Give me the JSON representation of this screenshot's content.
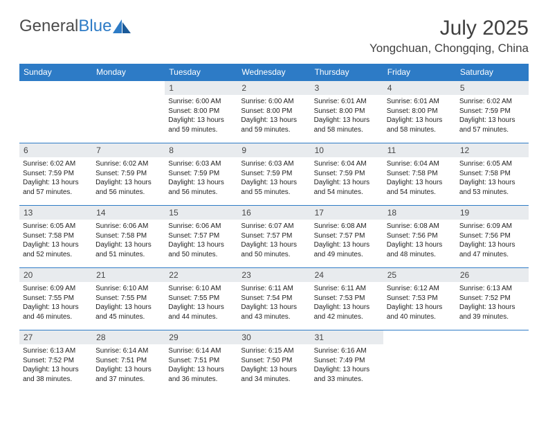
{
  "brand": {
    "word1": "General",
    "word2": "Blue"
  },
  "title": "July 2025",
  "location": "Yongchuan, Chongqing, China",
  "colors": {
    "headerBg": "#2d7bc6",
    "headerText": "#ffffff",
    "dayNumBg": "#e8ebee",
    "cellBorder": "#2d7bc6",
    "text": "#1e1e1e",
    "titleText": "#404040",
    "logoGray": "#4c4c4c"
  },
  "dayNames": [
    "Sunday",
    "Monday",
    "Tuesday",
    "Wednesday",
    "Thursday",
    "Friday",
    "Saturday"
  ],
  "style": {
    "titleFontSize": 30,
    "locationFontSize": 17,
    "dayNameFontSize": 12,
    "bodyFontSize": 10,
    "pageWidth": 792,
    "pageHeight": 612
  },
  "weeks": [
    [
      null,
      null,
      {
        "n": "1",
        "sunrise": "6:00 AM",
        "sunset": "8:00 PM",
        "daylight": "13 hours and 59 minutes."
      },
      {
        "n": "2",
        "sunrise": "6:00 AM",
        "sunset": "8:00 PM",
        "daylight": "13 hours and 59 minutes."
      },
      {
        "n": "3",
        "sunrise": "6:01 AM",
        "sunset": "8:00 PM",
        "daylight": "13 hours and 58 minutes."
      },
      {
        "n": "4",
        "sunrise": "6:01 AM",
        "sunset": "8:00 PM",
        "daylight": "13 hours and 58 minutes."
      },
      {
        "n": "5",
        "sunrise": "6:02 AM",
        "sunset": "7:59 PM",
        "daylight": "13 hours and 57 minutes."
      }
    ],
    [
      {
        "n": "6",
        "sunrise": "6:02 AM",
        "sunset": "7:59 PM",
        "daylight": "13 hours and 57 minutes."
      },
      {
        "n": "7",
        "sunrise": "6:02 AM",
        "sunset": "7:59 PM",
        "daylight": "13 hours and 56 minutes."
      },
      {
        "n": "8",
        "sunrise": "6:03 AM",
        "sunset": "7:59 PM",
        "daylight": "13 hours and 56 minutes."
      },
      {
        "n": "9",
        "sunrise": "6:03 AM",
        "sunset": "7:59 PM",
        "daylight": "13 hours and 55 minutes."
      },
      {
        "n": "10",
        "sunrise": "6:04 AM",
        "sunset": "7:59 PM",
        "daylight": "13 hours and 54 minutes."
      },
      {
        "n": "11",
        "sunrise": "6:04 AM",
        "sunset": "7:58 PM",
        "daylight": "13 hours and 54 minutes."
      },
      {
        "n": "12",
        "sunrise": "6:05 AM",
        "sunset": "7:58 PM",
        "daylight": "13 hours and 53 minutes."
      }
    ],
    [
      {
        "n": "13",
        "sunrise": "6:05 AM",
        "sunset": "7:58 PM",
        "daylight": "13 hours and 52 minutes."
      },
      {
        "n": "14",
        "sunrise": "6:06 AM",
        "sunset": "7:58 PM",
        "daylight": "13 hours and 51 minutes."
      },
      {
        "n": "15",
        "sunrise": "6:06 AM",
        "sunset": "7:57 PM",
        "daylight": "13 hours and 50 minutes."
      },
      {
        "n": "16",
        "sunrise": "6:07 AM",
        "sunset": "7:57 PM",
        "daylight": "13 hours and 50 minutes."
      },
      {
        "n": "17",
        "sunrise": "6:08 AM",
        "sunset": "7:57 PM",
        "daylight": "13 hours and 49 minutes."
      },
      {
        "n": "18",
        "sunrise": "6:08 AM",
        "sunset": "7:56 PM",
        "daylight": "13 hours and 48 minutes."
      },
      {
        "n": "19",
        "sunrise": "6:09 AM",
        "sunset": "7:56 PM",
        "daylight": "13 hours and 47 minutes."
      }
    ],
    [
      {
        "n": "20",
        "sunrise": "6:09 AM",
        "sunset": "7:55 PM",
        "daylight": "13 hours and 46 minutes."
      },
      {
        "n": "21",
        "sunrise": "6:10 AM",
        "sunset": "7:55 PM",
        "daylight": "13 hours and 45 minutes."
      },
      {
        "n": "22",
        "sunrise": "6:10 AM",
        "sunset": "7:55 PM",
        "daylight": "13 hours and 44 minutes."
      },
      {
        "n": "23",
        "sunrise": "6:11 AM",
        "sunset": "7:54 PM",
        "daylight": "13 hours and 43 minutes."
      },
      {
        "n": "24",
        "sunrise": "6:11 AM",
        "sunset": "7:53 PM",
        "daylight": "13 hours and 42 minutes."
      },
      {
        "n": "25",
        "sunrise": "6:12 AM",
        "sunset": "7:53 PM",
        "daylight": "13 hours and 40 minutes."
      },
      {
        "n": "26",
        "sunrise": "6:13 AM",
        "sunset": "7:52 PM",
        "daylight": "13 hours and 39 minutes."
      }
    ],
    [
      {
        "n": "27",
        "sunrise": "6:13 AM",
        "sunset": "7:52 PM",
        "daylight": "13 hours and 38 minutes."
      },
      {
        "n": "28",
        "sunrise": "6:14 AM",
        "sunset": "7:51 PM",
        "daylight": "13 hours and 37 minutes."
      },
      {
        "n": "29",
        "sunrise": "6:14 AM",
        "sunset": "7:51 PM",
        "daylight": "13 hours and 36 minutes."
      },
      {
        "n": "30",
        "sunrise": "6:15 AM",
        "sunset": "7:50 PM",
        "daylight": "13 hours and 34 minutes."
      },
      {
        "n": "31",
        "sunrise": "6:16 AM",
        "sunset": "7:49 PM",
        "daylight": "13 hours and 33 minutes."
      },
      null,
      null
    ]
  ],
  "labels": {
    "sunrisePrefix": "Sunrise: ",
    "sunsetPrefix": "Sunset: ",
    "daylightPrefix": "Daylight: "
  }
}
